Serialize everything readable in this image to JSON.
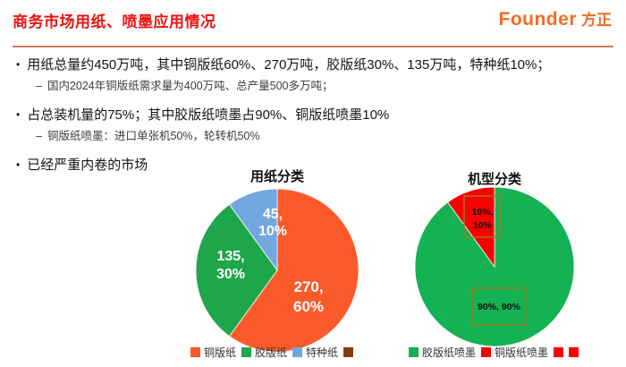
{
  "slide": {
    "title": "商务市场用纸、喷墨应用情况",
    "logo": {
      "en": "Founder",
      "cn": "方正"
    }
  },
  "bullets": [
    {
      "text": "用纸总量约450万吨，其中铜版纸60%、270万吨，胶版纸30%、135万吨，特种纸10%；",
      "subs": [
        "国内2024年铜版纸需求量为400万吨、总产量500多万吨；"
      ]
    },
    {
      "text": "占总装机量的75%；其中胶版纸喷墨占90%、铜版纸喷墨10%",
      "subs": [
        "铜版纸喷墨：进口单张机50%，轮转机50%"
      ]
    },
    {
      "text": "已经严重内卷的市场",
      "subs": []
    }
  ],
  "chart_data": [
    {
      "type": "pie",
      "title": "用纸分类",
      "legend_position": "bottom",
      "slices": [
        {
          "name": "铜版纸",
          "value": 270,
          "pct": 60,
          "color": "#FA5A2A",
          "label_lines": [
            "270,",
            "60%"
          ]
        },
        {
          "name": "胶版纸",
          "value": 135,
          "pct": 30,
          "color": "#1EA64A",
          "label_lines": [
            "135,",
            "30%"
          ]
        },
        {
          "name": "特种纸",
          "value": 45,
          "pct": 10,
          "color": "#73A7DF",
          "label_lines": [
            "45,",
            "10%"
          ]
        }
      ],
      "legend": [
        {
          "label": "铜版纸",
          "color": "#FA5A2A"
        },
        {
          "label": "胶版纸",
          "color": "#1EA64A"
        },
        {
          "label": "特种纸",
          "color": "#73A7DF"
        },
        {
          "label": "",
          "color": "#843C0C"
        }
      ]
    },
    {
      "type": "pie",
      "title": "机型分类",
      "legend_position": "bottom",
      "slices": [
        {
          "name": "胶版纸喷墨",
          "value": 90,
          "pct": 90,
          "color": "#14B252",
          "label_lines": [
            "90%, 90%"
          ],
          "boxed": true
        },
        {
          "name": "铜版纸喷墨",
          "value": 10,
          "pct": 10,
          "color": "#FA0000",
          "label_lines": [
            "10%,",
            "10%"
          ],
          "boxed": true
        }
      ],
      "legend": [
        {
          "label": "胶版纸喷墨",
          "color": "#14B252"
        },
        {
          "label": "铜版纸喷墨",
          "color": "#FA0000"
        },
        {
          "label": "",
          "color": "#FA0000"
        },
        {
          "label": "",
          "color": "#FA0000"
        }
      ]
    }
  ]
}
